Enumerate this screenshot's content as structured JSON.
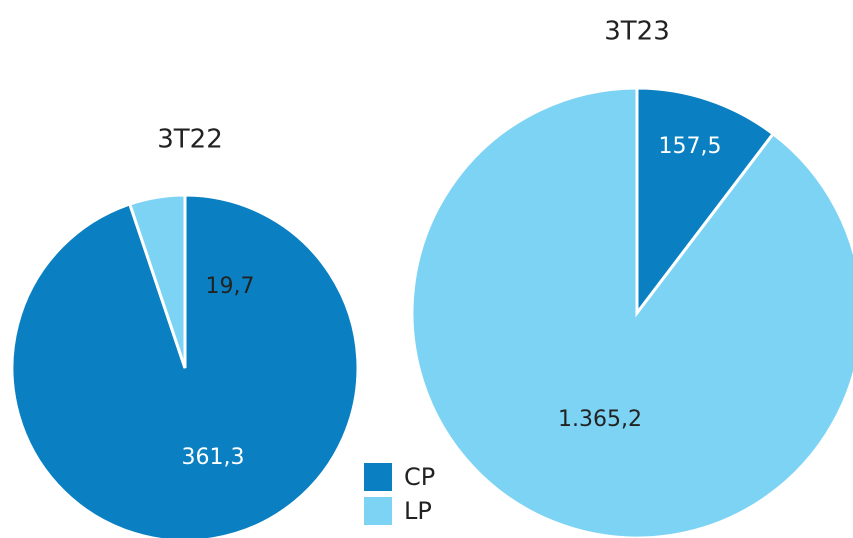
{
  "chart_data": [
    {
      "type": "pie",
      "title": "3T22",
      "categories": [
        "CP",
        "LP"
      ],
      "values": [
        361.3,
        19.7
      ],
      "value_labels": [
        "361,3",
        "19,7"
      ],
      "colors": [
        "#0a80c2",
        "#7dd3f4"
      ]
    },
    {
      "type": "pie",
      "title": "3T23",
      "categories": [
        "CP",
        "LP"
      ],
      "values": [
        157.5,
        1365.2
      ],
      "value_labels": [
        "157,5",
        "1.365,2"
      ],
      "colors": [
        "#0a80c2",
        "#7dd3f4"
      ]
    }
  ]
}
